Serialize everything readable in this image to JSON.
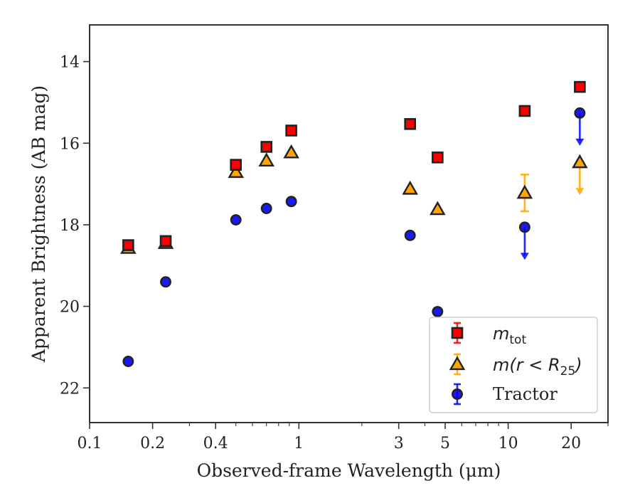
{
  "chart_data": {
    "type": "scatter",
    "xscale": "log",
    "xlim": [
      0.1,
      30
    ],
    "ylim": [
      22.85,
      13.1
    ],
    "y_inverted": true,
    "grid": false,
    "legend_position": "lower-right",
    "xlabel": "Observed-frame Wavelength (μm)",
    "ylabel": "Apparent Brightness (AB mag)",
    "xticks": [
      {
        "value": 0.1,
        "label": "0.1"
      },
      {
        "value": 0.2,
        "label": "0.2"
      },
      {
        "value": 0.4,
        "label": "0.4"
      },
      {
        "value": 1,
        "label": "1"
      },
      {
        "value": 3,
        "label": "3"
      },
      {
        "value": 5,
        "label": "5"
      },
      {
        "value": 10,
        "label": "10"
      },
      {
        "value": 20,
        "label": "20"
      }
    ],
    "yticks": [
      {
        "value": 14,
        "label": "14"
      },
      {
        "value": 16,
        "label": "16"
      },
      {
        "value": 18,
        "label": "18"
      },
      {
        "value": 20,
        "label": "20"
      },
      {
        "value": 22,
        "label": "22"
      }
    ],
    "series": [
      {
        "name": "m_tot",
        "legend_label": {
          "base": "m",
          "sub": "tot"
        },
        "marker": "square",
        "color": "#ff0000",
        "edge_color": "#222222",
        "points": [
          {
            "x": 0.153,
            "y": 18.5
          },
          {
            "x": 0.231,
            "y": 18.4
          },
          {
            "x": 0.5,
            "y": 16.53
          },
          {
            "x": 0.7,
            "y": 16.09
          },
          {
            "x": 0.92,
            "y": 15.69
          },
          {
            "x": 3.4,
            "y": 15.53
          },
          {
            "x": 4.6,
            "y": 16.35
          },
          {
            "x": 12.0,
            "y": 15.21
          },
          {
            "x": 22.0,
            "y": 14.62
          }
        ]
      },
      {
        "name": "m(r < R25)",
        "legend_label": {
          "text": "m(r < R",
          "sub": "25",
          "close": ")"
        },
        "marker": "triangle",
        "color": "#ffa500",
        "edge_color": "#222222",
        "points": [
          {
            "x": 0.153,
            "y": 18.57
          },
          {
            "x": 0.231,
            "y": 18.45
          },
          {
            "x": 0.5,
            "y": 16.71
          },
          {
            "x": 0.7,
            "y": 16.43
          },
          {
            "x": 0.92,
            "y": 16.23
          },
          {
            "x": 3.4,
            "y": 17.12
          },
          {
            "x": 4.6,
            "y": 17.62
          },
          {
            "x": 12.0,
            "y": 17.22,
            "yerr": 0.45
          },
          {
            "x": 22.0,
            "y": 16.47,
            "upper_limit": true
          }
        ]
      },
      {
        "name": "Tractor",
        "legend_label": {
          "text": "Tractor"
        },
        "marker": "circle",
        "color": "#0000ff",
        "edge_color": "#222222",
        "points": [
          {
            "x": 0.153,
            "y": 21.35
          },
          {
            "x": 0.231,
            "y": 19.4
          },
          {
            "x": 0.5,
            "y": 17.88
          },
          {
            "x": 0.7,
            "y": 17.6
          },
          {
            "x": 0.92,
            "y": 17.43
          },
          {
            "x": 3.4,
            "y": 18.26
          },
          {
            "x": 4.6,
            "y": 20.13
          },
          {
            "x": 12.0,
            "y": 18.06,
            "upper_limit": true
          },
          {
            "x": 22.0,
            "y": 15.26,
            "upper_limit": true
          }
        ]
      }
    ]
  }
}
